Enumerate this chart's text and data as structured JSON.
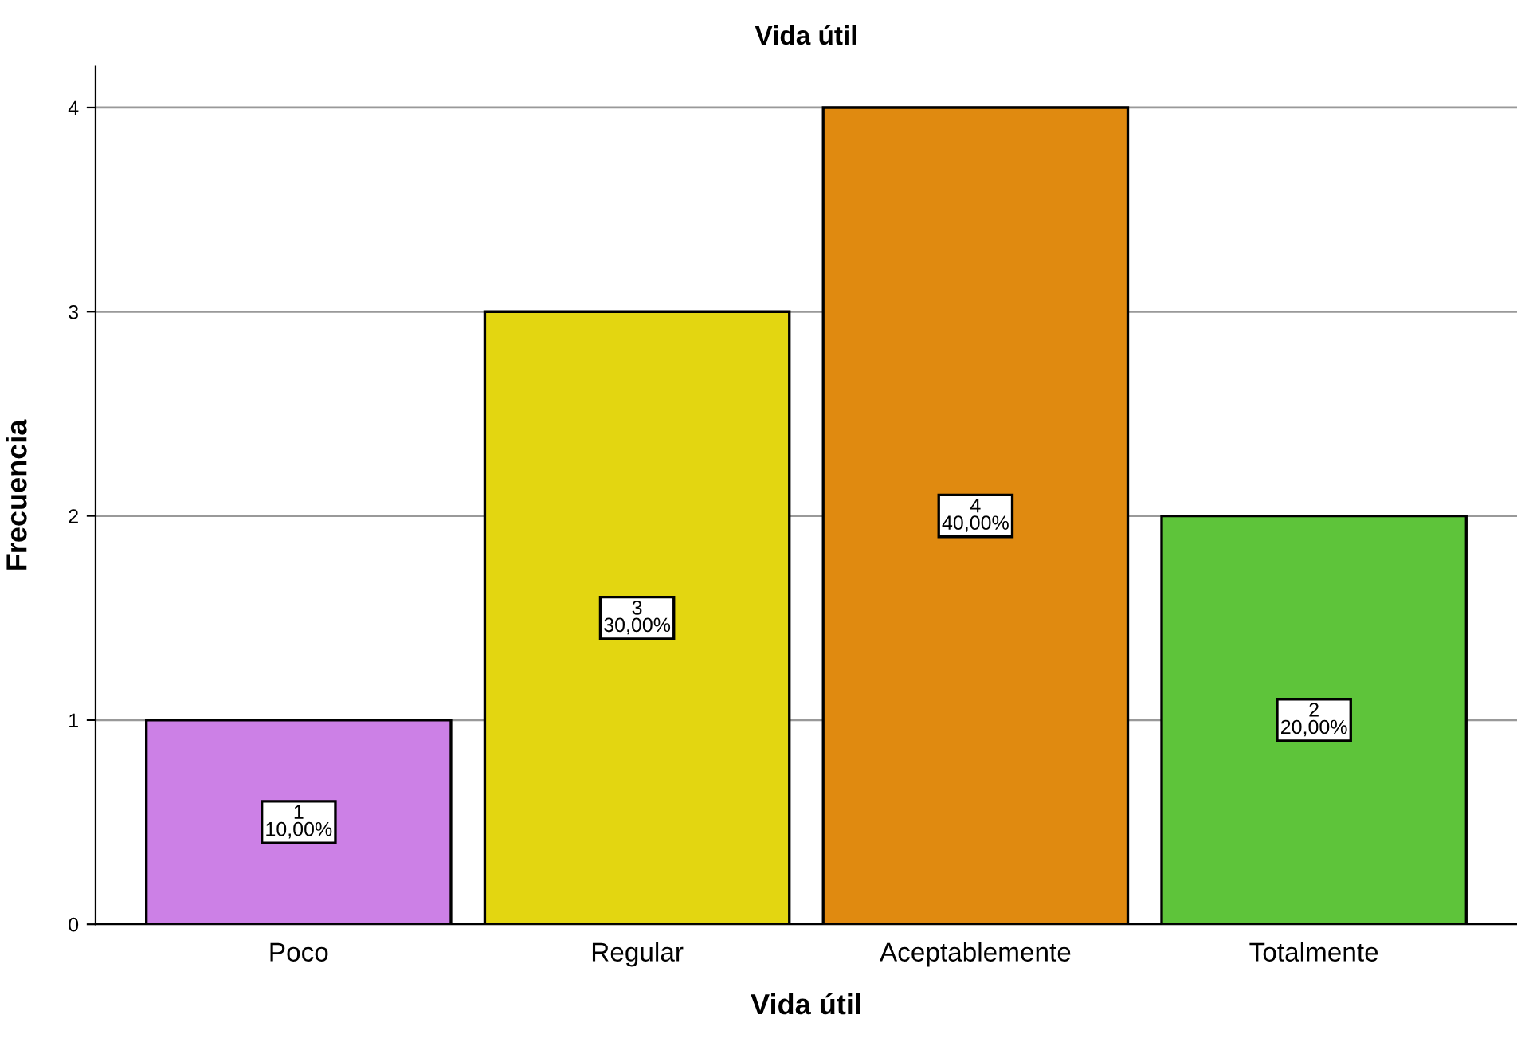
{
  "chart_data": {
    "type": "bar",
    "title": "Vida útil",
    "xlabel": "Vida útil",
    "ylabel": "Frecuencia",
    "categories": [
      "Poco",
      "Regular",
      "Aceptablemente",
      "Totalmente"
    ],
    "values": [
      1,
      3,
      4,
      2
    ],
    "colors": [
      "#cc80e6",
      "#e3d611",
      "#e08a10",
      "#5ec43a"
    ],
    "value_labels": [
      "1\n10,00%",
      "3\n30,00%",
      "4\n40,00%",
      "2\n20,00%"
    ],
    "ylim": [
      0,
      4.2
    ],
    "yticks": [
      0,
      1,
      2,
      3,
      4
    ],
    "grid": "y",
    "legend": false
  }
}
